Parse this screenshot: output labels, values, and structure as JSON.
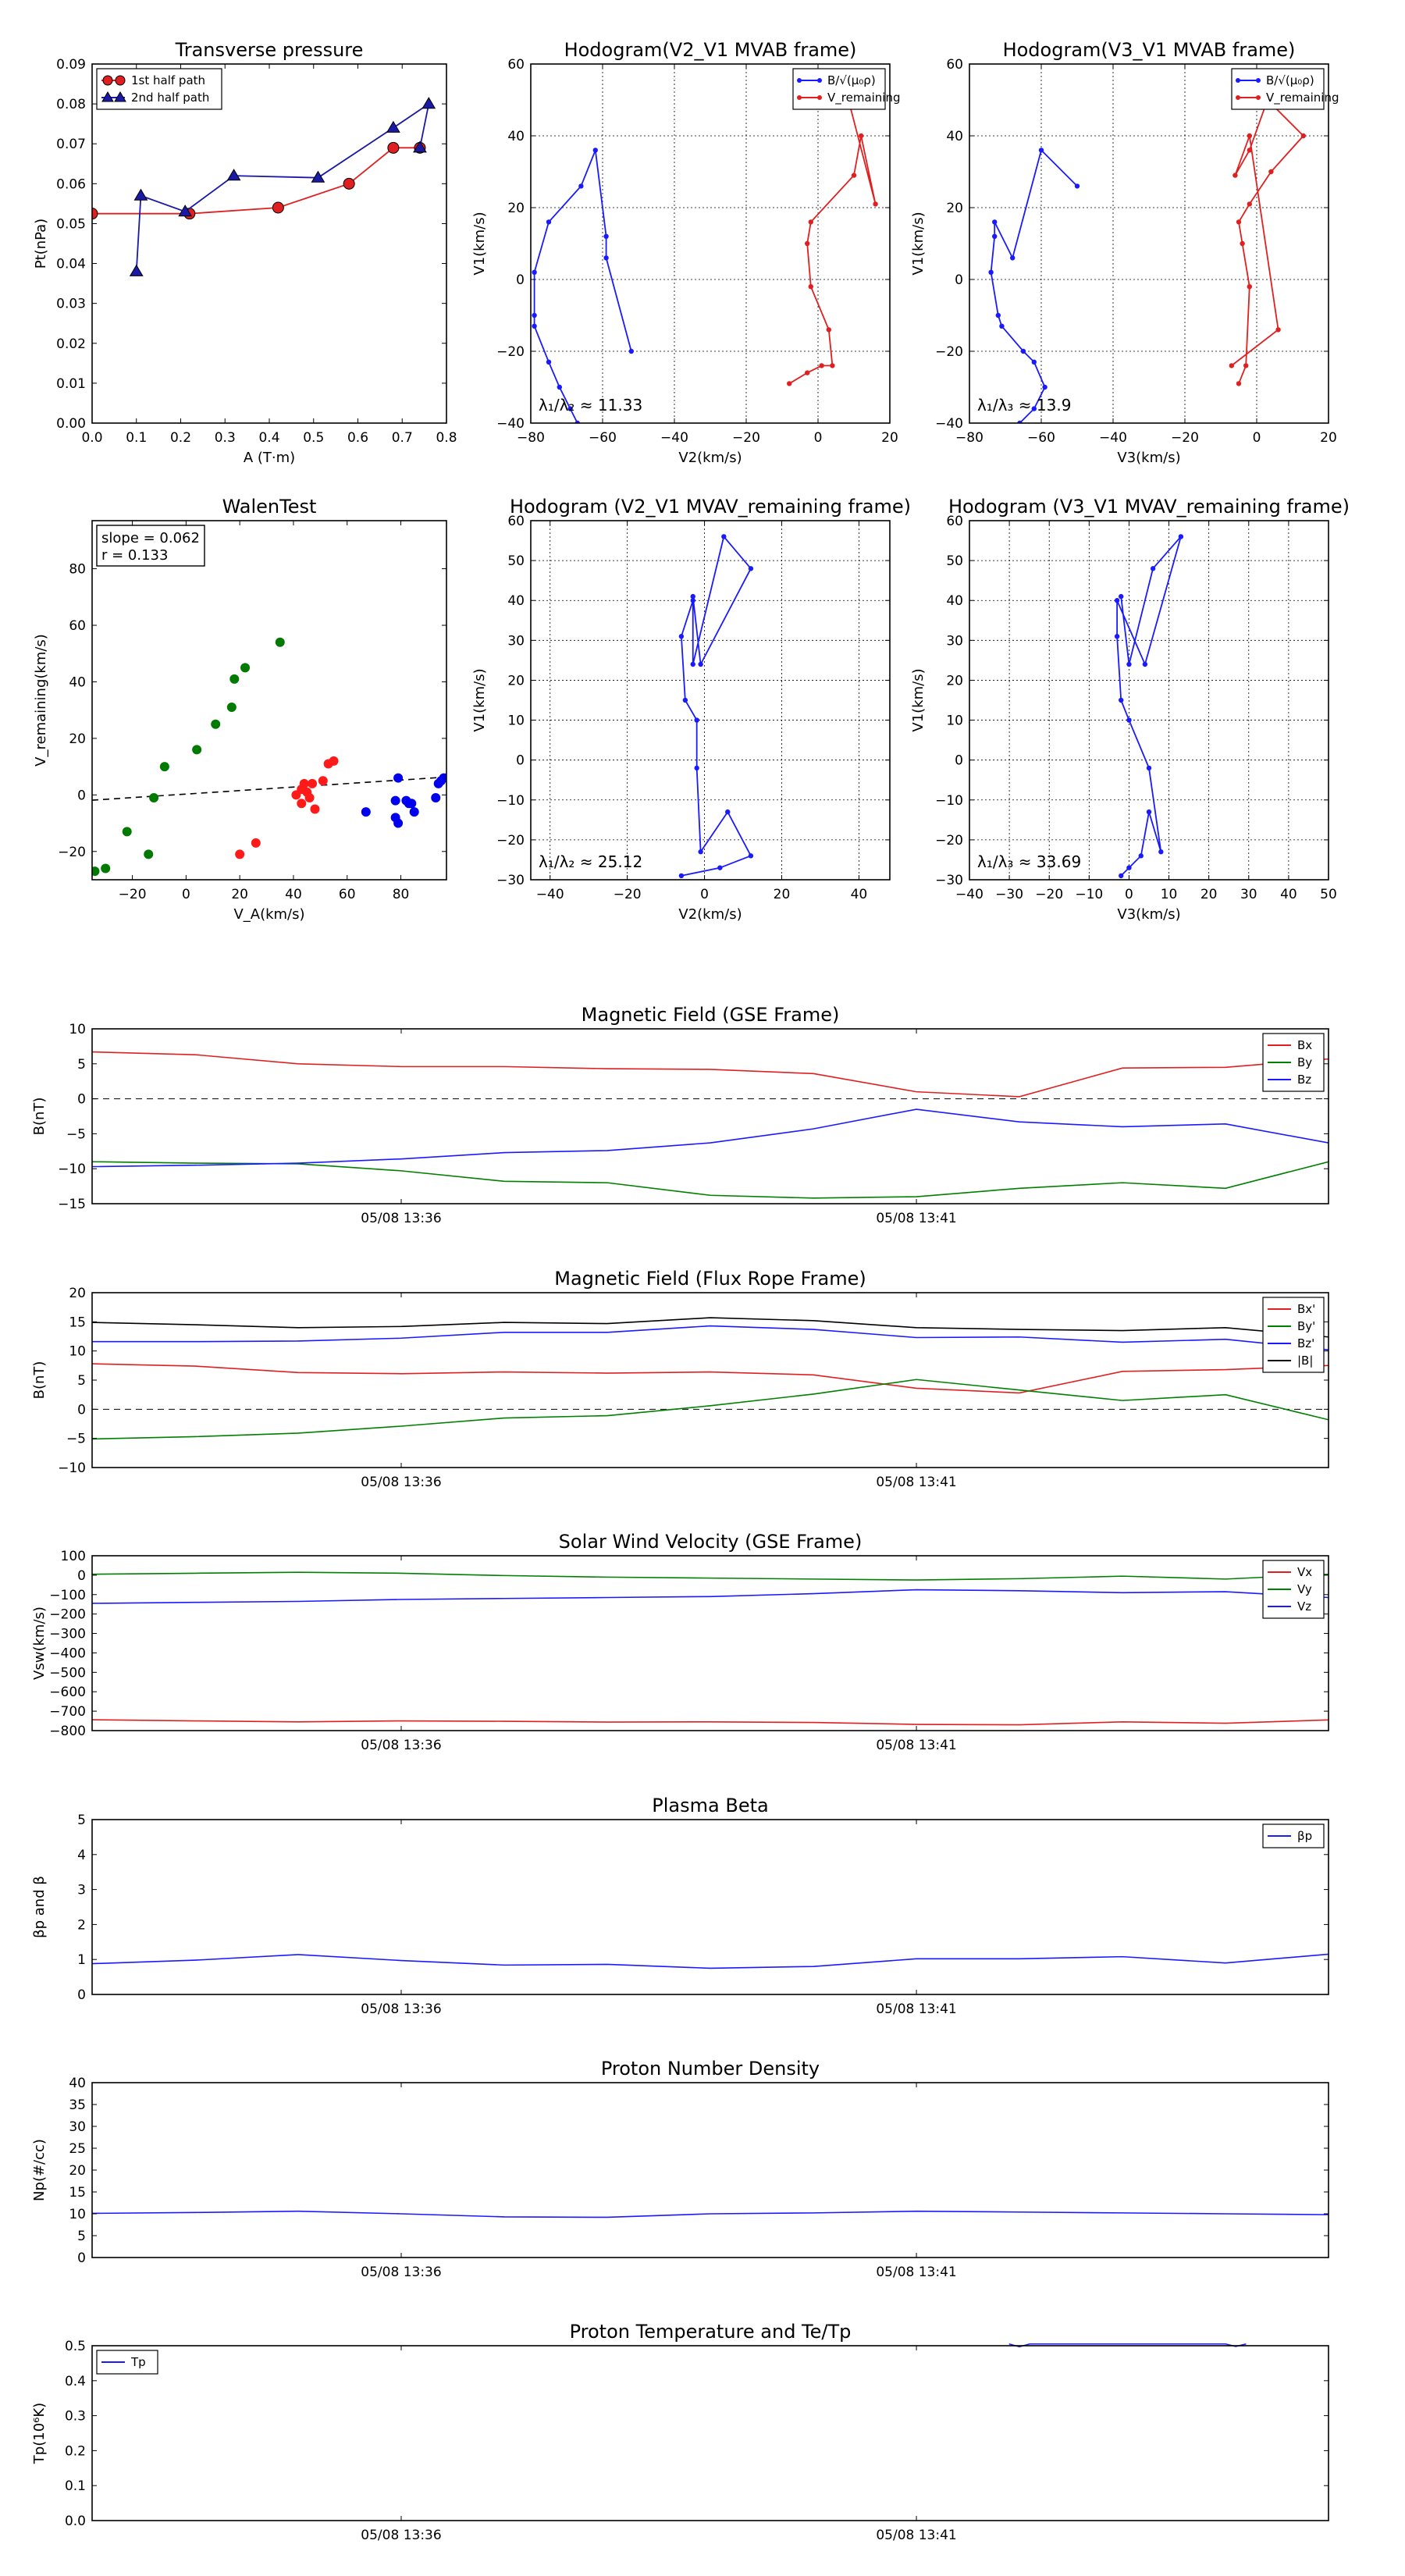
{
  "figure": {
    "timestamp_ticks": [
      "05/08 13:36",
      "05/08 13:41"
    ]
  },
  "chart_data": [
    {
      "id": "transverse",
      "type": "line",
      "title": "Transverse pressure",
      "xlabel": "A (T·m)",
      "ylabel": "Pt(nPa)",
      "xlim": [
        0,
        0.8
      ],
      "ylim": [
        0,
        0.09
      ],
      "xticks": [
        0,
        0.1,
        0.2,
        0.3,
        0.4,
        0.5,
        0.6,
        0.7,
        0.8
      ],
      "yticks": [
        0,
        0.01,
        0.02,
        0.03,
        0.04,
        0.05,
        0.06,
        0.07,
        0.08,
        0.09
      ],
      "tick_decimals": {
        "x": 1,
        "y": 2
      },
      "grid": false,
      "legend": "top-left",
      "series": [
        {
          "name": "1st half path",
          "color": "#e02020",
          "marker": "circle",
          "x": [
            0.0,
            0.22,
            0.42,
            0.58,
            0.68,
            0.74
          ],
          "y": [
            0.0525,
            0.0525,
            0.054,
            0.06,
            0.069,
            0.069
          ]
        },
        {
          "name": "2nd half path",
          "color": "#1a1aa6",
          "marker": "triangle",
          "x": [
            0.1,
            0.11,
            0.21,
            0.32,
            0.51,
            0.68,
            0.76,
            0.74
          ],
          "y": [
            0.038,
            0.057,
            0.053,
            0.062,
            0.0615,
            0.074,
            0.08,
            0.069
          ]
        }
      ]
    },
    {
      "id": "hodo_v2_mvab",
      "type": "line",
      "title": "Hodogram(V2_V1 MVAB frame)",
      "xlabel": "V2(km/s)",
      "ylabel": "V1(km/s)",
      "xlim": [
        -80,
        20
      ],
      "ylim": [
        -40,
        60
      ],
      "xticks": [
        -80,
        -60,
        -40,
        -20,
        0,
        20
      ],
      "yticks": [
        -40,
        -20,
        0,
        20,
        40,
        60
      ],
      "grid": true,
      "legend": "top-right",
      "annotation": "λ₁/λ₂ ≈ 11.33",
      "series": [
        {
          "name": "B/√(μ₀ρ)",
          "color": "#1a1aff",
          "x": [
            -67,
            -69,
            -72,
            -75,
            -79,
            -79,
            -79,
            -75,
            -66,
            -62,
            -59,
            -59,
            -52
          ],
          "y": [
            -40,
            -36,
            -30,
            -23,
            -13,
            -10,
            2,
            16,
            26,
            36,
            12,
            6,
            -20
          ]
        },
        {
          "name": "V_remaining",
          "color": "#e02020",
          "x": [
            -8,
            -3,
            1,
            4,
            3,
            -2,
            -3,
            -2,
            10,
            12,
            16,
            9
          ],
          "y": [
            -29,
            -26,
            -24,
            -24,
            -14,
            -2,
            10,
            16,
            29,
            40,
            21,
            48
          ]
        }
      ]
    },
    {
      "id": "hodo_v3_mvab",
      "type": "line",
      "title": "Hodogram(V3_V1 MVAB frame)",
      "xlabel": "V3(km/s)",
      "ylabel": "V1(km/s)",
      "xlim": [
        -80,
        20
      ],
      "ylim": [
        -40,
        60
      ],
      "xticks": [
        -80,
        -60,
        -40,
        -20,
        0,
        20
      ],
      "yticks": [
        -40,
        -20,
        0,
        20,
        40,
        60
      ],
      "grid": true,
      "legend": "top-right",
      "annotation": "λ₁/λ₃ ≈ 13.9",
      "series": [
        {
          "name": "B/√(μ₀ρ)",
          "color": "#1a1aff",
          "x": [
            -66,
            -62,
            -59,
            -62,
            -65,
            -71,
            -72,
            -74,
            -73,
            -73,
            -68,
            -60,
            -50
          ],
          "y": [
            -40,
            -36,
            -30,
            -23,
            -20,
            -13,
            -10,
            2,
            12,
            16,
            6,
            36,
            26
          ]
        },
        {
          "name": "V_remaining",
          "color": "#e02020",
          "x": [
            -5,
            -3,
            -2,
            -4,
            -5,
            -2,
            4,
            13,
            3,
            -2,
            -6,
            -2,
            6,
            -7
          ],
          "y": [
            -29,
            -24,
            -2,
            10,
            16,
            21,
            30,
            40,
            50,
            36,
            29,
            40,
            -14,
            -24
          ]
        }
      ]
    },
    {
      "id": "walen",
      "type": "scatter",
      "title": "WalenTest",
      "xlabel": "V_A(km/s)",
      "ylabel": "V_remaining(km/s)",
      "xlim": [
        -35,
        97
      ],
      "ylim": [
        -30,
        97
      ],
      "xticks": [
        -20,
        0,
        20,
        40,
        60,
        80
      ],
      "yticks": [
        -20,
        0,
        20,
        40,
        60,
        80
      ],
      "grid": false,
      "stats": [
        "slope = 0.062",
        "r = 0.133"
      ],
      "fit_line": {
        "slope": 0.062,
        "intercept": 0.3
      },
      "series": [
        {
          "name": "green",
          "color": "#007a00",
          "x": [
            -34,
            -30,
            -22,
            -14,
            -12,
            -8,
            4,
            11,
            17,
            18,
            22,
            35
          ],
          "y": [
            -27,
            -26,
            -13,
            -21,
            -1,
            10,
            16,
            25,
            31,
            41,
            45,
            54
          ]
        },
        {
          "name": "red",
          "color": "#ff1a1a",
          "x": [
            20,
            26,
            41,
            43,
            43,
            44,
            45,
            46,
            47,
            48,
            51,
            53,
            55
          ],
          "y": [
            -21,
            -17,
            0,
            2,
            -3,
            4,
            1,
            -1,
            4,
            -5,
            5,
            11,
            12
          ]
        },
        {
          "name": "blue",
          "color": "#0000ee",
          "x": [
            67,
            78,
            78,
            79,
            79,
            82,
            83,
            84,
            85,
            93,
            94,
            96,
            95
          ],
          "y": [
            -6,
            -2,
            -8,
            -10,
            6,
            -2,
            -3,
            -3,
            -6,
            -1,
            4,
            6,
            5
          ]
        }
      ]
    },
    {
      "id": "hodo_v2_mvav",
      "type": "line",
      "title": "Hodogram (V2_V1 MVAV_remaining frame)",
      "xlabel": "V2(km/s)",
      "ylabel": "V1(km/s)",
      "xlim": [
        -45,
        48
      ],
      "ylim": [
        -30,
        60
      ],
      "xticks": [
        -40,
        -20,
        0,
        20,
        40
      ],
      "yticks": [
        -30,
        -20,
        -10,
        0,
        10,
        20,
        30,
        40,
        50,
        60
      ],
      "grid": true,
      "legend": "none",
      "annotation": "λ₁/λ₂ ≈ 25.12",
      "series": [
        {
          "name": "trace",
          "color": "#1a1aff",
          "x": [
            -6,
            4,
            12,
            6,
            -1,
            -2,
            -2,
            -5,
            -6,
            -3,
            -3,
            5,
            12,
            -1,
            -3
          ],
          "y": [
            -29,
            -27,
            -24,
            -13,
            -23,
            -2,
            10,
            15,
            31,
            40,
            24,
            56,
            48,
            24,
            41
          ]
        }
      ]
    },
    {
      "id": "hodo_v3_mvav",
      "type": "line",
      "title": "Hodogram (V3_V1 MVAV_remaining frame)",
      "xlabel": "V3(km/s)",
      "ylabel": "V1(km/s)",
      "xlim": [
        -40,
        50
      ],
      "ylim": [
        -30,
        60
      ],
      "xticks": [
        -40,
        -30,
        -20,
        -10,
        0,
        10,
        20,
        30,
        40,
        50
      ],
      "yticks": [
        -30,
        -20,
        -10,
        0,
        10,
        20,
        30,
        40,
        50,
        60
      ],
      "grid": true,
      "legend": "none",
      "annotation": "λ₁/λ₃ ≈ 33.69",
      "series": [
        {
          "name": "trace",
          "color": "#1a1aff",
          "x": [
            -2,
            0,
            3,
            5,
            8,
            5,
            0,
            -2,
            -3,
            -3,
            4,
            13,
            6,
            0,
            -2
          ],
          "y": [
            -29,
            -27,
            -24,
            -13,
            -23,
            -2,
            10,
            15,
            31,
            40,
            24,
            56,
            48,
            24,
            41
          ]
        }
      ]
    },
    {
      "id": "mag_gse",
      "type": "line",
      "title": "Magnetic Field (GSE Frame)",
      "xlabel": "",
      "ylabel": "B(nT)",
      "xlim": [
        0,
        12
      ],
      "ylim": [
        -15,
        10
      ],
      "yticks": [
        -15,
        -10,
        -5,
        0,
        5,
        10
      ],
      "zero_line": true,
      "legend": "top-right",
      "series": [
        {
          "name": "Bx",
          "color": "#e02020",
          "x": [
            0,
            1,
            2,
            3,
            4,
            5,
            6,
            7,
            8,
            9,
            10,
            11,
            12
          ],
          "y": [
            6.7,
            6.3,
            5.0,
            4.6,
            4.6,
            4.3,
            4.2,
            3.6,
            1.0,
            0.3,
            4.4,
            4.5,
            5.7
          ]
        },
        {
          "name": "By",
          "color": "#008000",
          "x": [
            0,
            1,
            2,
            3,
            4,
            5,
            6,
            7,
            8,
            9,
            10,
            11,
            12
          ],
          "y": [
            -9.0,
            -9.2,
            -9.3,
            -10.3,
            -11.8,
            -12.0,
            -13.8,
            -14.2,
            -14.0,
            -12.8,
            -12.0,
            -12.8,
            -9.0
          ]
        },
        {
          "name": "Bz",
          "color": "#1a1aff",
          "x": [
            0,
            1,
            2,
            3,
            4,
            5,
            6,
            7,
            8,
            9,
            10,
            11,
            12
          ],
          "y": [
            -9.7,
            -9.5,
            -9.2,
            -8.6,
            -7.7,
            -7.4,
            -6.3,
            -4.3,
            -1.5,
            -3.3,
            -4.0,
            -3.6,
            -6.3
          ]
        }
      ]
    },
    {
      "id": "mag_fr",
      "type": "line",
      "title": "Magnetic Field (Flux Rope Frame)",
      "xlabel": "",
      "ylabel": "B(nT)",
      "xlim": [
        0,
        12
      ],
      "ylim": [
        -10,
        20
      ],
      "yticks": [
        -10,
        -5,
        0,
        5,
        10,
        15,
        20
      ],
      "zero_line": true,
      "legend": "top-right",
      "series": [
        {
          "name": "Bx'",
          "color": "#e02020",
          "x": [
            0,
            1,
            2,
            3,
            4,
            5,
            6,
            7,
            8,
            9,
            10,
            11,
            12
          ],
          "y": [
            7.8,
            7.4,
            6.3,
            6.1,
            6.4,
            6.2,
            6.4,
            5.9,
            3.6,
            2.8,
            6.5,
            6.8,
            7.5
          ]
        },
        {
          "name": "By'",
          "color": "#008000",
          "x": [
            0,
            1,
            2,
            3,
            4,
            5,
            6,
            7,
            8,
            9,
            10,
            11,
            12
          ],
          "y": [
            -5.1,
            -4.7,
            -4.1,
            -2.9,
            -1.5,
            -1.1,
            0.6,
            2.6,
            5.1,
            3.3,
            1.5,
            2.5,
            -1.8
          ]
        },
        {
          "name": "Bz'",
          "color": "#1a1aff",
          "x": [
            0,
            1,
            2,
            3,
            4,
            5,
            6,
            7,
            8,
            9,
            10,
            11,
            12
          ],
          "y": [
            11.6,
            11.6,
            11.7,
            12.2,
            13.2,
            13.2,
            14.3,
            13.7,
            12.3,
            12.4,
            11.5,
            12.0,
            10.2
          ]
        },
        {
          "name": "|B|",
          "color": "#000000",
          "x": [
            0,
            1,
            2,
            3,
            4,
            5,
            6,
            7,
            8,
            9,
            10,
            11,
            12
          ],
          "y": [
            14.9,
            14.5,
            14.0,
            14.2,
            14.9,
            14.7,
            15.7,
            15.2,
            14.0,
            13.7,
            13.5,
            14.0,
            12.4
          ]
        }
      ]
    },
    {
      "id": "vel_gse",
      "type": "line",
      "title": "Solar Wind Velocity (GSE Frame)",
      "xlabel": "",
      "ylabel": "Vsw(km/s)",
      "xlim": [
        0,
        12
      ],
      "ylim": [
        -800,
        100
      ],
      "yticks": [
        -800,
        -700,
        -600,
        -500,
        -400,
        -300,
        -200,
        -100,
        0,
        100
      ],
      "zero_line": false,
      "legend": "top-right",
      "series": [
        {
          "name": "Vx",
          "color": "#e02020",
          "x": [
            0,
            1,
            2,
            3,
            4,
            5,
            6,
            7,
            8,
            9,
            10,
            11,
            12
          ],
          "y": [
            -744,
            -750,
            -755,
            -750,
            -752,
            -756,
            -755,
            -758,
            -768,
            -770,
            -755,
            -762,
            -745
          ]
        },
        {
          "name": "Vy",
          "color": "#008000",
          "x": [
            0,
            1,
            2,
            3,
            4,
            5,
            6,
            7,
            8,
            9,
            10,
            11,
            12
          ],
          "y": [
            5,
            10,
            15,
            10,
            -2,
            -10,
            -15,
            -20,
            -25,
            -18,
            -5,
            -20,
            5
          ]
        },
        {
          "name": "Vz",
          "color": "#1a1aff",
          "x": [
            0,
            1,
            2,
            3,
            4,
            5,
            6,
            7,
            8,
            9,
            10,
            11,
            12
          ],
          "y": [
            -145,
            -140,
            -135,
            -125,
            -120,
            -115,
            -110,
            -95,
            -75,
            -80,
            -90,
            -85,
            -115
          ]
        }
      ]
    },
    {
      "id": "beta",
      "type": "line",
      "title": "Plasma Beta",
      "xlabel": "",
      "ylabel": "βp and β",
      "xlim": [
        0,
        12
      ],
      "ylim": [
        0,
        5
      ],
      "yticks": [
        0,
        1,
        2,
        3,
        4,
        5
      ],
      "zero_line": false,
      "legend": "top-right",
      "series": [
        {
          "name": "βp",
          "color": "#1a1aff",
          "x": [
            0,
            1,
            2,
            3,
            4,
            5,
            6,
            7,
            8,
            9,
            10,
            11,
            12
          ],
          "y": [
            0.88,
            0.98,
            1.14,
            0.97,
            0.84,
            0.86,
            0.75,
            0.8,
            1.02,
            1.02,
            1.08,
            0.9,
            1.15
          ]
        }
      ]
    },
    {
      "id": "density",
      "type": "line",
      "title": "Proton Number Density",
      "xlabel": "",
      "ylabel": "Np(#/cc)",
      "xlim": [
        0,
        12
      ],
      "ylim": [
        0,
        40
      ],
      "yticks": [
        0,
        5,
        10,
        15,
        20,
        25,
        30,
        35,
        40
      ],
      "zero_line": false,
      "legend": "none",
      "series": [
        {
          "name": "Np",
          "color": "#1a1aff",
          "x": [
            0,
            1,
            2,
            3,
            4,
            5,
            6,
            7,
            8,
            9,
            10,
            11,
            12
          ],
          "y": [
            10.1,
            10.3,
            10.6,
            10.0,
            9.3,
            9.2,
            10.0,
            10.2,
            10.6,
            10.4,
            10.2,
            10.0,
            9.8
          ]
        }
      ]
    },
    {
      "id": "temp",
      "type": "line",
      "title": "Proton Temperature and Te/Tp",
      "xlabel": "",
      "ylabel": "Tp(10⁶K)",
      "xlim": [
        0,
        12
      ],
      "ylim": [
        0,
        0.5
      ],
      "yticks": [
        0,
        0.1,
        0.2,
        0.3,
        0.4,
        0.5
      ],
      "tick_decimals": {
        "y": 1
      },
      "zero_line": false,
      "legend": "top-left",
      "series": [
        {
          "name": "Tp",
          "color": "#1a1aff",
          "x": [
            8.9,
            9.0,
            9.1,
            11.0,
            11.1,
            11.2
          ],
          "y": [
            0.505,
            0.497,
            0.505,
            0.505,
            0.498,
            0.505
          ]
        }
      ]
    }
  ]
}
